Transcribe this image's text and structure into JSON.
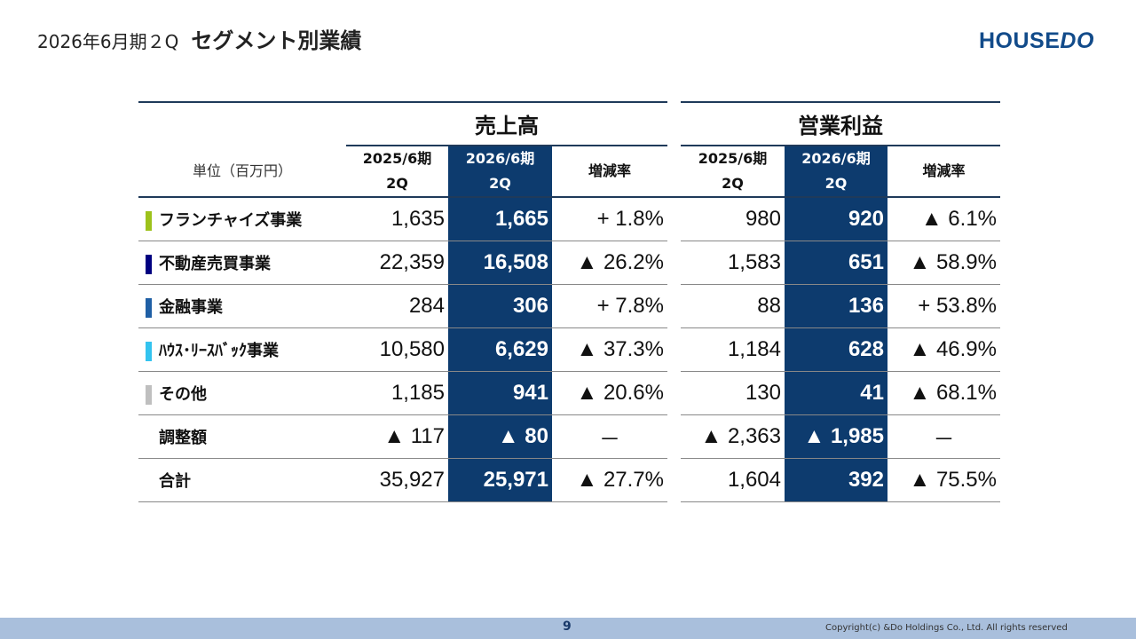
{
  "header": {
    "period": "2026年6月期２Q",
    "title": "セグメント別業績",
    "logo_a": "HOUSE",
    "logo_b": "DO"
  },
  "table": {
    "unit": "単位（百万円）",
    "groups": [
      "売上高",
      "営業利益"
    ],
    "col_prev": [
      "2025/6期",
      "2Q"
    ],
    "col_curr": [
      "2026/6期",
      "2Q"
    ],
    "col_rate": "増減率",
    "rows": [
      {
        "label": "フランチャイズ事業",
        "color": "#9dc21b",
        "s_prev": "1,635",
        "s_curr": "1,665",
        "s_rate": "+ 1.8%",
        "p_prev": "980",
        "p_curr": "920",
        "p_rate": "▲ 6.1%"
      },
      {
        "label": "不動産売買事業",
        "color": "#000080",
        "s_prev": "22,359",
        "s_curr": "16,508",
        "s_rate": "▲ 26.2%",
        "p_prev": "1,583",
        "p_curr": "651",
        "p_rate": "▲ 58.9%"
      },
      {
        "label": "金融事業",
        "color": "#1f5fa5",
        "s_prev": "284",
        "s_curr": "306",
        "s_rate": "+ 7.8%",
        "p_prev": "88",
        "p_curr": "136",
        "p_rate": "+ 53.8%"
      },
      {
        "label": "ﾊｳｽ･ﾘｰｽﾊﾞｯｸ事業",
        "color": "#33c3ef",
        "s_prev": "10,580",
        "s_curr": "6,629",
        "s_rate": "▲ 37.3%",
        "p_prev": "1,184",
        "p_curr": "628",
        "p_rate": "▲ 46.9%"
      },
      {
        "label": "その他",
        "color": "#bfbfbf",
        "s_prev": "1,185",
        "s_curr": "941",
        "s_rate": "▲ 20.6%",
        "p_prev": "130",
        "p_curr": "41",
        "p_rate": "▲ 68.1%"
      },
      {
        "label": "調整額",
        "color": "",
        "s_prev": "▲ 117",
        "s_curr": "▲ 80",
        "s_rate": "－",
        "p_prev": "▲ 2,363",
        "p_curr": "▲ 1,985",
        "p_rate": "－"
      },
      {
        "label": "合計",
        "color": "",
        "s_prev": "35,927",
        "s_curr": "25,971",
        "s_rate": "▲ 27.7%",
        "p_prev": "1,604",
        "p_curr": "392",
        "p_rate": "▲ 75.5%"
      }
    ]
  },
  "footer": {
    "page": "9",
    "copyright": "Copyright(c) &Do Holdings Co., Ltd. All rights reserved"
  }
}
